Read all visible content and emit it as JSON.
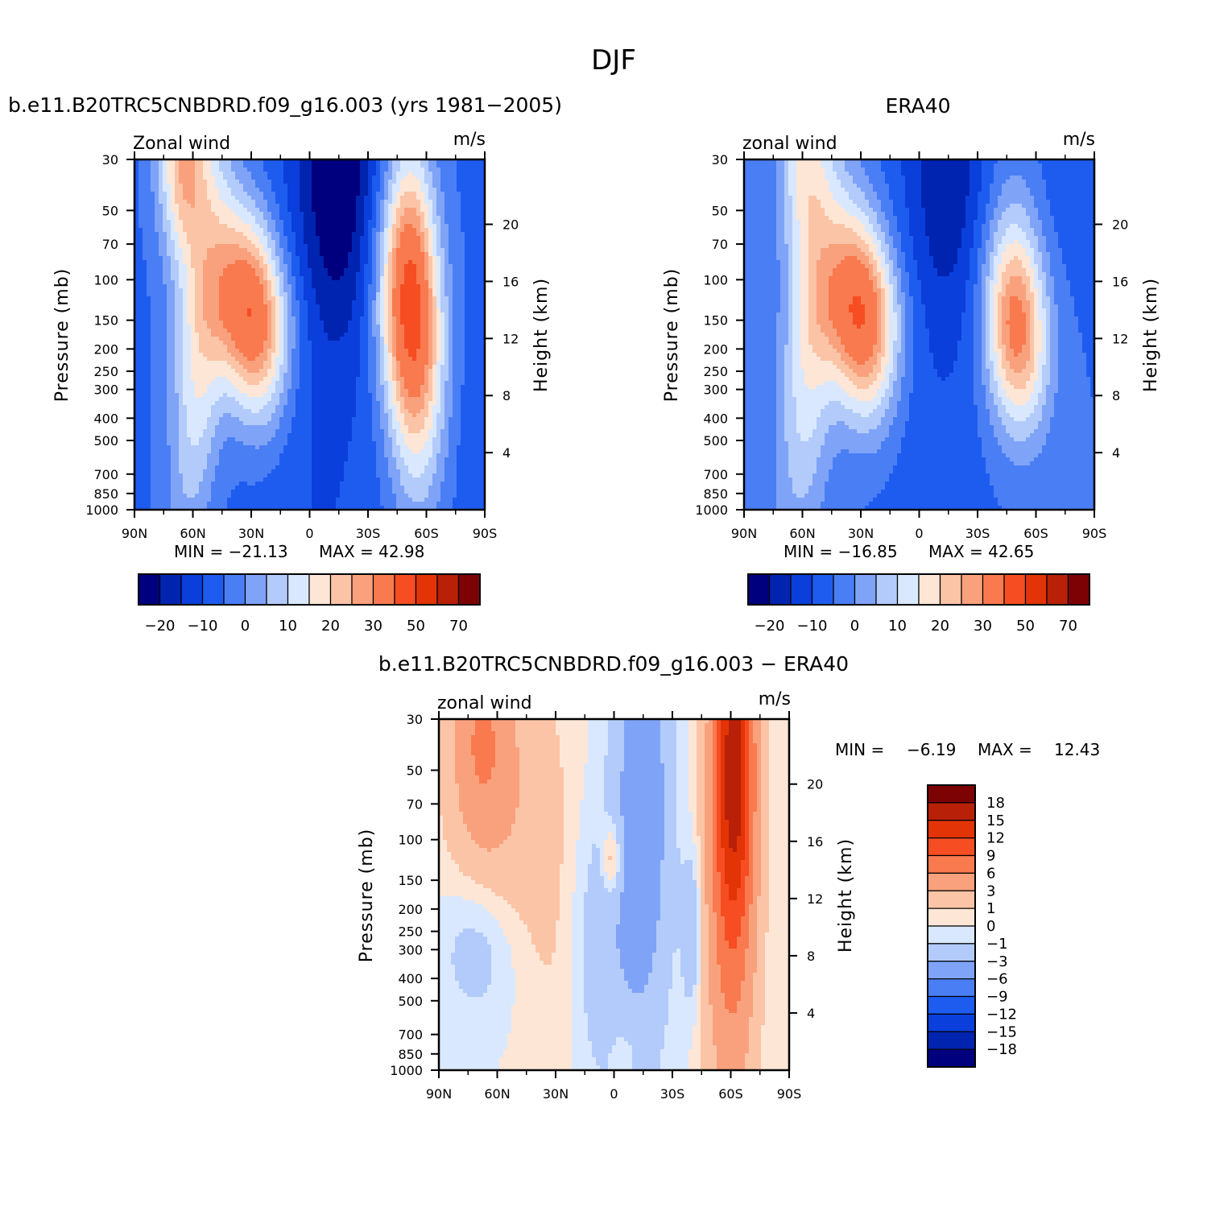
{
  "figure": {
    "title": "DJF"
  },
  "chart_data": [
    {
      "type": "heatmap",
      "panel": "model",
      "title": "b.e11.B20TRC5CNBDRD.f09_g16.003 (yrs 1981-2005)",
      "left_string": "Zonal wind",
      "right_string": "m/s",
      "xlabel": "",
      "ylabel": "Pressure (mb)",
      "y2label": "Height (km)",
      "x_ticks": [
        "90N",
        "60N",
        "30N",
        "0",
        "30S",
        "60S",
        "90S"
      ],
      "x_range": [
        90,
        -90
      ],
      "y_ticks": [
        30,
        50,
        70,
        100,
        150,
        200,
        250,
        300,
        400,
        500,
        700,
        850,
        1000
      ],
      "y_range": [
        1000,
        30
      ],
      "y_scale": "log",
      "y2_ticks": [
        4,
        8,
        12,
        16,
        20
      ],
      "min_label": "MIN = -21.13",
      "max_label": "MAX = 42.98",
      "min": -21.13,
      "max": 42.98,
      "colorbar_orientation": "horizontal",
      "colorbar_labels": [
        "-20",
        "-10",
        "0",
        "10",
        "20",
        "30",
        "50",
        "70"
      ],
      "jets": [
        {
          "lat": 30,
          "p": 200,
          "max": 42.98
        },
        {
          "lat": -52,
          "p": 200,
          "max": 38
        }
      ],
      "easterly_min": {
        "lat": -15,
        "p": 30,
        "min": -21.13
      }
    },
    {
      "type": "heatmap",
      "panel": "obs",
      "title": "ERA40",
      "left_string": "zonal wind",
      "right_string": "m/s",
      "xlabel": "",
      "ylabel": "Pressure (mb)",
      "y2label": "Height (km)",
      "x_ticks": [
        "90N",
        "60N",
        "30N",
        "0",
        "30S",
        "60S",
        "90S"
      ],
      "x_range": [
        90,
        -90
      ],
      "y_ticks": [
        30,
        50,
        70,
        100,
        150,
        200,
        250,
        300,
        400,
        500,
        700,
        850,
        1000
      ],
      "y_range": [
        1000,
        30
      ],
      "y_scale": "log",
      "y2_ticks": [
        4,
        8,
        12,
        16,
        20
      ],
      "min_label": "MIN = -16.85",
      "max_label": "MAX = 42.65",
      "min": -16.85,
      "max": 42.65,
      "colorbar_orientation": "horizontal",
      "colorbar_labels": [
        "-20",
        "-10",
        "0",
        "10",
        "20",
        "30",
        "50",
        "70"
      ],
      "jets": [
        {
          "lat": 30,
          "p": 200,
          "max": 42.65
        },
        {
          "lat": -50,
          "p": 230,
          "max": 36
        }
      ],
      "easterly_min": {
        "lat": -15,
        "p": 30,
        "min": -16.85
      }
    },
    {
      "type": "heatmap",
      "panel": "difference",
      "title": "b.e11.B20TRC5CNBDRD.f09_g16.003 - ERA40",
      "left_string": "zonal wind",
      "right_string": "m/s",
      "xlabel": "",
      "ylabel": "Pressure (mb)",
      "y2label": "Height (km)",
      "x_ticks": [
        "90N",
        "60N",
        "30N",
        "0",
        "30S",
        "60S",
        "90S"
      ],
      "x_range": [
        90,
        -90
      ],
      "y_ticks": [
        30,
        50,
        70,
        100,
        150,
        200,
        250,
        300,
        400,
        500,
        700,
        850,
        1000
      ],
      "y_range": [
        1000,
        30
      ],
      "y_scale": "log",
      "y2_ticks": [
        4,
        8,
        12,
        16,
        20
      ],
      "min_label": "MIN =",
      "min_value": "-6.19",
      "max_label": "MAX =",
      "max_value": "12.43",
      "min": -6.19,
      "max": 12.43,
      "colorbar_orientation": "vertical",
      "colorbar_labels": [
        "18",
        "15",
        "12",
        "9",
        "6",
        "3",
        "1",
        "0",
        "-1",
        "-3",
        "-6",
        "-9",
        "-12",
        "-15",
        "-18"
      ]
    }
  ],
  "colors": {
    "palette": [
      "#00007e",
      "#0024b0",
      "#0a3fdc",
      "#1e5cf0",
      "#4a7ef5",
      "#7fa3f7",
      "#b2cbfa",
      "#d9e8fe",
      "#fde6d6",
      "#fbc4a6",
      "#f9a17d",
      "#f87a4e",
      "#f64d23",
      "#e23406",
      "#b82008",
      "#7d0204"
    ],
    "diff_palette": [
      "#00007e",
      "#0024b0",
      "#0a3fdc",
      "#1e5cf0",
      "#4a7ef5",
      "#7fa3f7",
      "#b2cbfa",
      "#d9e8fe",
      "#fde6d6",
      "#fbc4a6",
      "#f9a17d",
      "#f87a4e",
      "#f64d23",
      "#e23406",
      "#b82008",
      "#7d0204"
    ]
  }
}
